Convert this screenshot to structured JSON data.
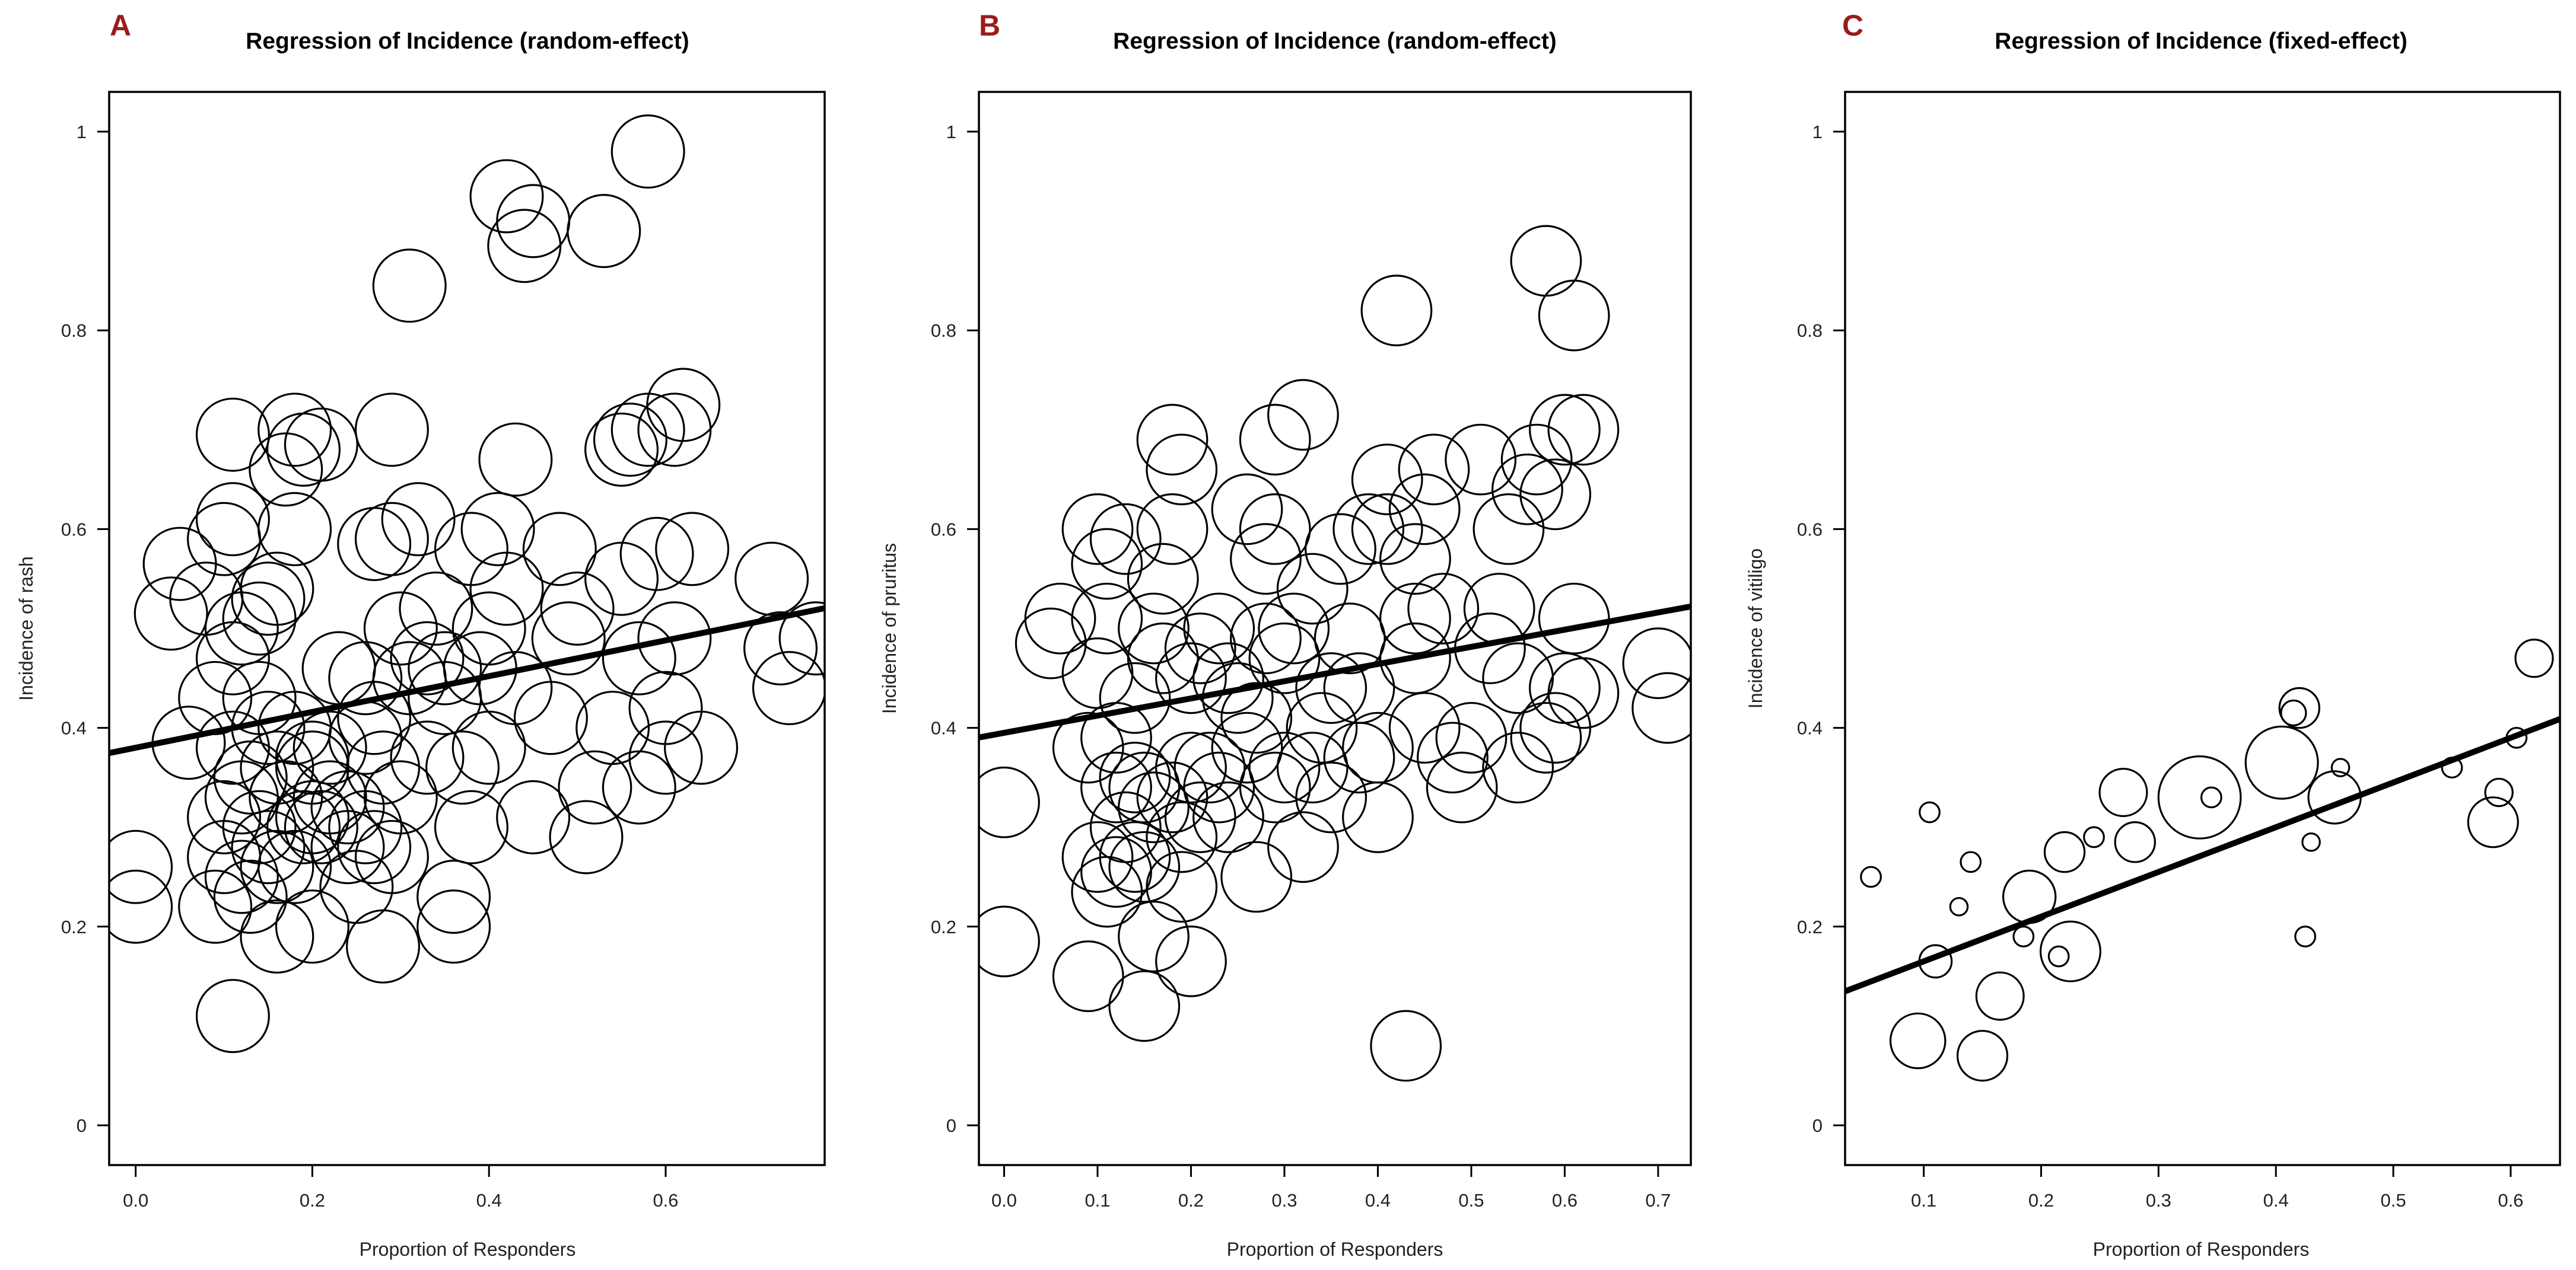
{
  "figure": {
    "panel_letter_color": "#9b1b1b",
    "text_color": "#000000"
  },
  "chart_data": [
    {
      "type": "scatter",
      "panel": "A",
      "title": "Regression of Incidence (random-effect)",
      "xlabel": "Proportion of Responders",
      "ylabel": "Incidence of rash",
      "xlim": [
        -0.03,
        0.78
      ],
      "ylim": [
        -0.04,
        1.04
      ],
      "xticks": [
        0.0,
        0.2,
        0.4,
        0.6
      ],
      "yticks": [
        0,
        0.2,
        0.4,
        0.6,
        0.8,
        1
      ],
      "xtick_labels": [
        "0.0",
        "0.2",
        "0.4",
        "0.6"
      ],
      "ytick_labels": [
        "0",
        "0.2",
        "0.4",
        "0.6",
        "0.8",
        "1"
      ],
      "regression": {
        "intercept": 0.38,
        "slope": 0.18
      },
      "points": [
        [
          0.0,
          0.26,
          29
        ],
        [
          0.0,
          0.22,
          29
        ],
        [
          0.05,
          0.565,
          29
        ],
        [
          0.04,
          0.515,
          29
        ],
        [
          0.06,
          0.385,
          29
        ],
        [
          0.08,
          0.53,
          29
        ],
        [
          0.09,
          0.43,
          29
        ],
        [
          0.09,
          0.22,
          29
        ],
        [
          0.1,
          0.31,
          29
        ],
        [
          0.1,
          0.27,
          29
        ],
        [
          0.1,
          0.59,
          29
        ],
        [
          0.11,
          0.61,
          29
        ],
        [
          0.11,
          0.695,
          29
        ],
        [
          0.11,
          0.47,
          29
        ],
        [
          0.11,
          0.38,
          29
        ],
        [
          0.12,
          0.33,
          29
        ],
        [
          0.12,
          0.25,
          29
        ],
        [
          0.12,
          0.5,
          29
        ],
        [
          0.13,
          0.23,
          29
        ],
        [
          0.13,
          0.35,
          29
        ],
        [
          0.14,
          0.51,
          29
        ],
        [
          0.14,
          0.3,
          29
        ],
        [
          0.15,
          0.53,
          29
        ],
        [
          0.15,
          0.28,
          29
        ],
        [
          0.15,
          0.4,
          29
        ],
        [
          0.16,
          0.19,
          29
        ],
        [
          0.16,
          0.26,
          29
        ],
        [
          0.16,
          0.54,
          29
        ],
        [
          0.17,
          0.66,
          29
        ],
        [
          0.17,
          0.33,
          29
        ],
        [
          0.18,
          0.6,
          29
        ],
        [
          0.18,
          0.7,
          29
        ],
        [
          0.18,
          0.4,
          29
        ],
        [
          0.19,
          0.3,
          29
        ],
        [
          0.19,
          0.68,
          29
        ],
        [
          0.2,
          0.31,
          29
        ],
        [
          0.2,
          0.2,
          29
        ],
        [
          0.2,
          0.37,
          29
        ],
        [
          0.21,
          0.3,
          29
        ],
        [
          0.21,
          0.685,
          29
        ],
        [
          0.22,
          0.33,
          29
        ],
        [
          0.23,
          0.46,
          29
        ],
        [
          0.24,
          0.28,
          29
        ],
        [
          0.25,
          0.24,
          29
        ],
        [
          0.26,
          0.45,
          29
        ],
        [
          0.26,
          0.3,
          29
        ],
        [
          0.27,
          0.585,
          29
        ],
        [
          0.27,
          0.41,
          29
        ],
        [
          0.28,
          0.36,
          29
        ],
        [
          0.28,
          0.18,
          29
        ],
        [
          0.29,
          0.59,
          29
        ],
        [
          0.29,
          0.7,
          29
        ],
        [
          0.29,
          0.27,
          29
        ],
        [
          0.3,
          0.5,
          29
        ],
        [
          0.31,
          0.45,
          29
        ],
        [
          0.31,
          0.845,
          29
        ],
        [
          0.32,
          0.61,
          29
        ],
        [
          0.33,
          0.37,
          29
        ],
        [
          0.34,
          0.52,
          29
        ],
        [
          0.35,
          0.46,
          29
        ],
        [
          0.35,
          0.43,
          29
        ],
        [
          0.36,
          0.2,
          29
        ],
        [
          0.36,
          0.23,
          29
        ],
        [
          0.37,
          0.36,
          29
        ],
        [
          0.38,
          0.58,
          29
        ],
        [
          0.39,
          0.46,
          29
        ],
        [
          0.4,
          0.5,
          29
        ],
        [
          0.4,
          0.38,
          29
        ],
        [
          0.41,
          0.6,
          29
        ],
        [
          0.42,
          0.935,
          29
        ],
        [
          0.42,
          0.54,
          29
        ],
        [
          0.43,
          0.67,
          29
        ],
        [
          0.43,
          0.44,
          29
        ],
        [
          0.44,
          0.885,
          29
        ],
        [
          0.45,
          0.91,
          29
        ],
        [
          0.45,
          0.31,
          29
        ],
        [
          0.47,
          0.41,
          29
        ],
        [
          0.48,
          0.58,
          29
        ],
        [
          0.49,
          0.49,
          29
        ],
        [
          0.5,
          0.52,
          29
        ],
        [
          0.51,
          0.29,
          29
        ],
        [
          0.52,
          0.34,
          29
        ],
        [
          0.53,
          0.9,
          29
        ],
        [
          0.54,
          0.4,
          29
        ],
        [
          0.55,
          0.55,
          29
        ],
        [
          0.55,
          0.68,
          29
        ],
        [
          0.56,
          0.69,
          29
        ],
        [
          0.57,
          0.47,
          29
        ],
        [
          0.57,
          0.34,
          29
        ],
        [
          0.58,
          0.98,
          29
        ],
        [
          0.58,
          0.7,
          29
        ],
        [
          0.59,
          0.575,
          29
        ],
        [
          0.6,
          0.42,
          29
        ],
        [
          0.6,
          0.37,
          29
        ],
        [
          0.61,
          0.7,
          29
        ],
        [
          0.61,
          0.49,
          29
        ],
        [
          0.62,
          0.725,
          29
        ],
        [
          0.63,
          0.58,
          29
        ],
        [
          0.64,
          0.38,
          29
        ],
        [
          0.72,
          0.55,
          29
        ],
        [
          0.73,
          0.48,
          29
        ],
        [
          0.74,
          0.44,
          29
        ],
        [
          0.77,
          0.49,
          29
        ],
        [
          0.11,
          0.11,
          29
        ],
        [
          0.14,
          0.43,
          29
        ],
        [
          0.2,
          0.36,
          29
        ],
        [
          0.22,
          0.38,
          29
        ],
        [
          0.24,
          0.32,
          29
        ],
        [
          0.3,
          0.33,
          29
        ],
        [
          0.33,
          0.47,
          29
        ],
        [
          0.38,
          0.3,
          29
        ],
        [
          0.27,
          0.28,
          29
        ],
        [
          0.26,
          0.39,
          29
        ],
        [
          0.18,
          0.26,
          29
        ],
        [
          0.16,
          0.36,
          29
        ]
      ]
    },
    {
      "type": "scatter",
      "panel": "B",
      "title": "Regression of Incidence (random-effect)",
      "xlabel": "Proportion of Responders",
      "ylabel": "Incidence of pruritus",
      "xlim": [
        -0.027,
        0.735
      ],
      "ylim": [
        -0.04,
        1.04
      ],
      "xticks": [
        0.0,
        0.1,
        0.2,
        0.3,
        0.4,
        0.5,
        0.6,
        0.7
      ],
      "yticks": [
        0,
        0.2,
        0.4,
        0.6,
        0.8,
        1
      ],
      "xtick_labels": [
        "0.0",
        "0.1",
        "0.2",
        "0.3",
        "0.4",
        "0.5",
        "0.6",
        "0.7"
      ],
      "ytick_labels": [
        "0",
        "0.2",
        "0.4",
        "0.6",
        "0.8",
        "1"
      ],
      "regression": {
        "intercept": 0.395,
        "slope": 0.173
      },
      "points": [
        [
          0.0,
          0.325,
          28
        ],
        [
          0.0,
          0.185,
          28
        ],
        [
          0.05,
          0.485,
          28
        ],
        [
          0.06,
          0.51,
          28
        ],
        [
          0.09,
          0.38,
          28
        ],
        [
          0.09,
          0.15,
          28
        ],
        [
          0.1,
          0.6,
          28
        ],
        [
          0.1,
          0.455,
          28
        ],
        [
          0.1,
          0.27,
          28
        ],
        [
          0.11,
          0.235,
          28
        ],
        [
          0.11,
          0.565,
          28
        ],
        [
          0.11,
          0.51,
          28
        ],
        [
          0.12,
          0.34,
          28
        ],
        [
          0.12,
          0.255,
          28
        ],
        [
          0.13,
          0.59,
          28
        ],
        [
          0.13,
          0.3,
          28
        ],
        [
          0.14,
          0.43,
          28
        ],
        [
          0.14,
          0.35,
          28
        ],
        [
          0.15,
          0.26,
          28
        ],
        [
          0.15,
          0.12,
          28
        ],
        [
          0.15,
          0.34,
          28
        ],
        [
          0.16,
          0.5,
          28
        ],
        [
          0.16,
          0.19,
          28
        ],
        [
          0.17,
          0.55,
          28
        ],
        [
          0.17,
          0.47,
          28
        ],
        [
          0.18,
          0.33,
          28
        ],
        [
          0.18,
          0.69,
          28
        ],
        [
          0.18,
          0.6,
          28
        ],
        [
          0.19,
          0.66,
          28
        ],
        [
          0.19,
          0.24,
          28
        ],
        [
          0.2,
          0.165,
          28
        ],
        [
          0.2,
          0.45,
          28
        ],
        [
          0.2,
          0.36,
          28
        ],
        [
          0.21,
          0.31,
          28
        ],
        [
          0.22,
          0.36,
          28
        ],
        [
          0.23,
          0.5,
          28
        ],
        [
          0.24,
          0.31,
          28
        ],
        [
          0.25,
          0.43,
          28
        ],
        [
          0.26,
          0.62,
          28
        ],
        [
          0.26,
          0.38,
          28
        ],
        [
          0.27,
          0.25,
          28
        ],
        [
          0.28,
          0.57,
          28
        ],
        [
          0.28,
          0.49,
          28
        ],
        [
          0.29,
          0.69,
          28
        ],
        [
          0.29,
          0.6,
          28
        ],
        [
          0.3,
          0.36,
          28
        ],
        [
          0.3,
          0.47,
          28
        ],
        [
          0.31,
          0.5,
          28
        ],
        [
          0.32,
          0.715,
          28
        ],
        [
          0.32,
          0.28,
          28
        ],
        [
          0.33,
          0.36,
          28
        ],
        [
          0.34,
          0.4,
          28
        ],
        [
          0.35,
          0.33,
          28
        ],
        [
          0.36,
          0.58,
          28
        ],
        [
          0.37,
          0.49,
          28
        ],
        [
          0.38,
          0.44,
          28
        ],
        [
          0.39,
          0.6,
          28
        ],
        [
          0.4,
          0.31,
          28
        ],
        [
          0.4,
          0.38,
          28
        ],
        [
          0.41,
          0.65,
          28
        ],
        [
          0.41,
          0.6,
          28
        ],
        [
          0.42,
          0.82,
          28
        ],
        [
          0.43,
          0.08,
          28
        ],
        [
          0.44,
          0.51,
          28
        ],
        [
          0.44,
          0.47,
          28
        ],
        [
          0.45,
          0.62,
          28
        ],
        [
          0.45,
          0.4,
          28
        ],
        [
          0.46,
          0.66,
          28
        ],
        [
          0.47,
          0.52,
          28
        ],
        [
          0.48,
          0.37,
          28
        ],
        [
          0.49,
          0.34,
          28
        ],
        [
          0.5,
          0.39,
          28
        ],
        [
          0.51,
          0.67,
          28
        ],
        [
          0.53,
          0.52,
          28
        ],
        [
          0.54,
          0.6,
          28
        ],
        [
          0.55,
          0.45,
          28
        ],
        [
          0.55,
          0.36,
          28
        ],
        [
          0.56,
          0.64,
          28
        ],
        [
          0.57,
          0.67,
          28
        ],
        [
          0.58,
          0.87,
          28
        ],
        [
          0.58,
          0.39,
          28
        ],
        [
          0.59,
          0.635,
          28
        ],
        [
          0.59,
          0.4,
          28
        ],
        [
          0.6,
          0.44,
          28
        ],
        [
          0.6,
          0.7,
          28
        ],
        [
          0.61,
          0.815,
          28
        ],
        [
          0.61,
          0.51,
          28
        ],
        [
          0.62,
          0.435,
          28
        ],
        [
          0.62,
          0.7,
          28
        ],
        [
          0.7,
          0.465,
          28
        ],
        [
          0.71,
          0.42,
          28
        ],
        [
          0.14,
          0.27,
          28
        ],
        [
          0.21,
          0.48,
          28
        ],
        [
          0.23,
          0.34,
          28
        ],
        [
          0.27,
          0.41,
          28
        ],
        [
          0.29,
          0.34,
          28
        ],
        [
          0.35,
          0.44,
          28
        ],
        [
          0.38,
          0.37,
          28
        ],
        [
          0.16,
          0.32,
          28
        ],
        [
          0.12,
          0.39,
          28
        ],
        [
          0.19,
          0.29,
          28
        ],
        [
          0.24,
          0.45,
          28
        ],
        [
          0.33,
          0.54,
          28
        ],
        [
          0.44,
          0.57,
          28
        ],
        [
          0.52,
          0.48,
          28
        ]
      ]
    },
    {
      "type": "scatter",
      "panel": "C",
      "title": "Regression of Incidence (fixed-effect)",
      "xlabel": "Proportion of Responders",
      "ylabel": "Incidence of vitiligo",
      "xlim": [
        0.033,
        0.642
      ],
      "ylim": [
        -0.04,
        1.04
      ],
      "xticks": [
        0.1,
        0.2,
        0.3,
        0.4,
        0.5,
        0.6
      ],
      "yticks": [
        0,
        0.2,
        0.4,
        0.6,
        0.8,
        1
      ],
      "xtick_labels": [
        "0.1",
        "0.2",
        "0.3",
        "0.4",
        "0.5",
        "0.6"
      ],
      "ytick_labels": [
        "0",
        "0.2",
        "0.4",
        "0.6",
        "0.8",
        "1"
      ],
      "regression": {
        "intercept": 0.12,
        "slope": 0.45
      },
      "points": [
        [
          0.055,
          0.25,
          8
        ],
        [
          0.095,
          0.085,
          22
        ],
        [
          0.105,
          0.315,
          8
        ],
        [
          0.11,
          0.165,
          13
        ],
        [
          0.13,
          0.22,
          7
        ],
        [
          0.14,
          0.265,
          8
        ],
        [
          0.15,
          0.07,
          20
        ],
        [
          0.165,
          0.13,
          19
        ],
        [
          0.185,
          0.19,
          8
        ],
        [
          0.19,
          0.23,
          21
        ],
        [
          0.215,
          0.17,
          8
        ],
        [
          0.22,
          0.275,
          16
        ],
        [
          0.225,
          0.175,
          24
        ],
        [
          0.245,
          0.29,
          8
        ],
        [
          0.27,
          0.335,
          19
        ],
        [
          0.28,
          0.285,
          16
        ],
        [
          0.335,
          0.33,
          33
        ],
        [
          0.345,
          0.33,
          8
        ],
        [
          0.405,
          0.365,
          29
        ],
        [
          0.415,
          0.415,
          10
        ],
        [
          0.42,
          0.42,
          16
        ],
        [
          0.425,
          0.19,
          8
        ],
        [
          0.43,
          0.285,
          7
        ],
        [
          0.45,
          0.33,
          21
        ],
        [
          0.455,
          0.36,
          7
        ],
        [
          0.55,
          0.36,
          8
        ],
        [
          0.585,
          0.305,
          20
        ],
        [
          0.59,
          0.335,
          11
        ],
        [
          0.605,
          0.39,
          8
        ],
        [
          0.62,
          0.47,
          15
        ]
      ]
    }
  ]
}
